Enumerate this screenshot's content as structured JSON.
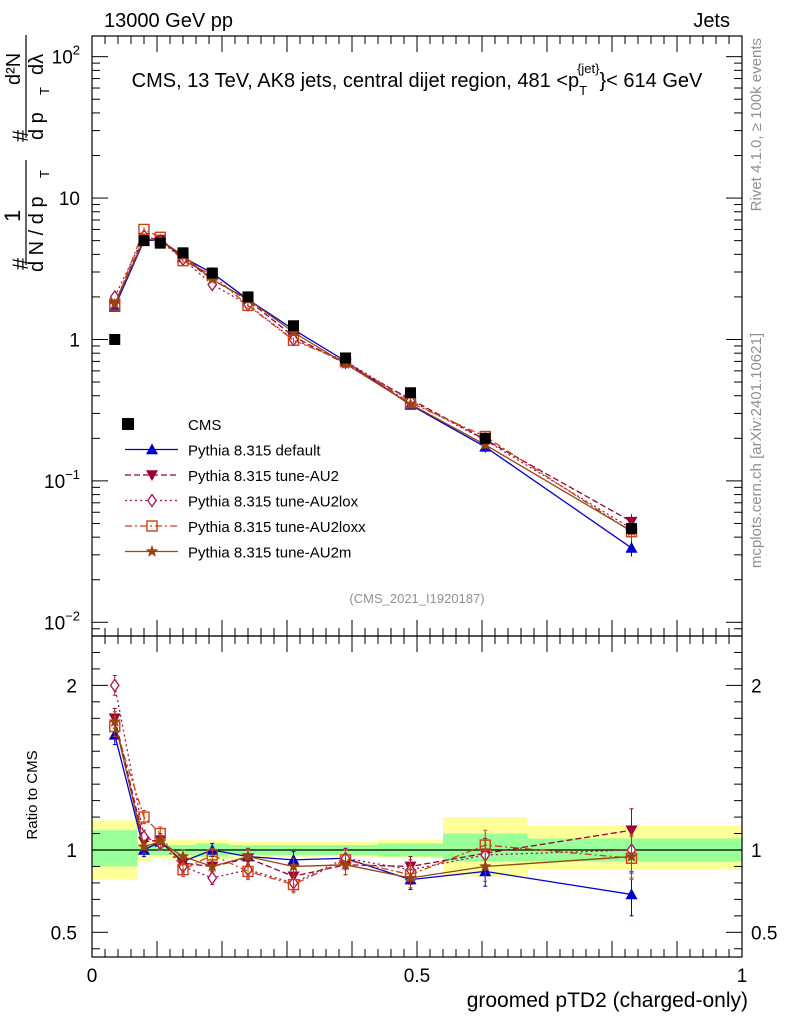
{
  "header": {
    "left": "13000 GeV pp",
    "right": "Jets"
  },
  "chart_data": {
    "type": "line",
    "title": "CMS, 13 TeV, AK8 jets, central dijet region, 481 < p_T^{jet} < 614 GeV",
    "title_parts": {
      "pre": "CMS, 13 TeV, AK8 jets, central dijet region, 481 <p",
      "sub": "T",
      "sup": "{jet}",
      "post": "}< 614 GeV"
    },
    "analysis_id": "(CMS_2021_I1920187)",
    "xlabel": "groomed pTD2 (charged-only)",
    "ylabel_parts": {
      "hash": "#",
      "one": "1",
      "dN": "d N / d p",
      "T": "T",
      "hash2": "#",
      "d2N": "d²N",
      "dpT": "d p",
      "T2": "T",
      "dlambda": "dλ"
    },
    "ratio_ylabel": "Ratio to CMS",
    "xlim": [
      0,
      1
    ],
    "ylim_top": [
      0.008,
      140
    ],
    "ylim_ratio": [
      0.35,
      2.3
    ],
    "x_ticks": [
      "0",
      "0.5",
      "1"
    ],
    "y_ticks_top": [
      {
        "base": "10",
        "exp": "2",
        "value": 100
      },
      {
        "base": "10",
        "exp": "",
        "value": 10
      },
      {
        "base": "1",
        "exp": "",
        "value": 1
      },
      {
        "base": "10",
        "exp": "−1",
        "value": 0.1
      },
      {
        "base": "10",
        "exp": "−2",
        "value": 0.01
      }
    ],
    "y_ticks_ratio": [
      "2",
      "1",
      "0.5"
    ],
    "x": [
      0.035,
      0.08,
      0.105,
      0.14,
      0.185,
      0.24,
      0.31,
      0.39,
      0.49,
      0.605,
      0.83
    ],
    "bin_edges": [
      0.0,
      0.07,
      0.09,
      0.12,
      0.16,
      0.21,
      0.27,
      0.35,
      0.44,
      0.54,
      0.67,
      1.0
    ],
    "cms_values": [
      1.0,
      5.0,
      4.8,
      4.1,
      2.95,
      2.0,
      1.25,
      0.74,
      0.42,
      0.2,
      0.046
    ],
    "band_inner": [
      [
        0.9,
        1.12
      ],
      [
        0.97,
        1.03
      ],
      [
        0.97,
        1.03
      ],
      [
        0.97,
        1.03
      ],
      [
        0.96,
        1.04
      ],
      [
        0.97,
        1.03
      ],
      [
        0.97,
        1.03
      ],
      [
        0.97,
        1.03
      ],
      [
        0.96,
        1.04
      ],
      [
        0.93,
        1.1
      ],
      [
        0.93,
        1.07
      ]
    ],
    "band_outer": [
      [
        0.82,
        1.18
      ],
      [
        0.93,
        1.05
      ],
      [
        0.95,
        1.05
      ],
      [
        0.94,
        1.06
      ],
      [
        0.94,
        1.06
      ],
      [
        0.95,
        1.05
      ],
      [
        0.96,
        1.05
      ],
      [
        0.96,
        1.05
      ],
      [
        0.95,
        1.06
      ],
      [
        0.84,
        1.2
      ],
      [
        0.88,
        1.15
      ]
    ],
    "series": [
      {
        "name": "Pythia 8.315 default",
        "color": "#0000cc",
        "dash": "",
        "marker": "triangle-up",
        "ratio": [
          1.7,
          1.0,
          1.05,
          0.93,
          1.0,
          0.96,
          0.94,
          0.95,
          0.82,
          0.87,
          0.73
        ],
        "err": [
          0.06,
          0.04,
          0.04,
          0.04,
          0.04,
          0.05,
          0.05,
          0.06,
          0.06,
          0.09,
          0.13
        ]
      },
      {
        "name": "Pythia 8.315 tune-AU2",
        "color": "#990033",
        "dash": "6,3",
        "marker": "triangle-down",
        "ratio": [
          1.8,
          1.05,
          1.06,
          0.92,
          0.9,
          0.95,
          0.84,
          0.91,
          0.9,
          0.98,
          1.12
        ],
        "err": [
          0.06,
          0.04,
          0.04,
          0.04,
          0.04,
          0.05,
          0.05,
          0.06,
          0.06,
          0.09,
          0.13
        ]
      },
      {
        "name": "Pythia 8.315 tune-AU2lox",
        "color": "#aa1155",
        "dash": "2,3",
        "marker": "diamond-open",
        "ratio": [
          2.0,
          1.08,
          1.04,
          0.9,
          0.83,
          0.88,
          0.8,
          0.95,
          0.88,
          0.97,
          1.0
        ],
        "err": [
          0.06,
          0.04,
          0.04,
          0.04,
          0.04,
          0.05,
          0.05,
          0.06,
          0.06,
          0.09,
          0.13
        ]
      },
      {
        "name": "Pythia 8.315 tune-AU2loxx",
        "color": "#cc4411",
        "dash": "7,3,2,3",
        "marker": "square-open",
        "ratio": [
          1.75,
          1.2,
          1.1,
          0.88,
          0.97,
          0.87,
          0.79,
          0.94,
          0.85,
          1.03,
          0.95
        ],
        "err": [
          0.06,
          0.04,
          0.04,
          0.04,
          0.04,
          0.05,
          0.05,
          0.06,
          0.06,
          0.09,
          0.13
        ]
      },
      {
        "name": "Pythia 8.315 tune-AU2m",
        "color": "#994411",
        "dash": "",
        "marker": "star",
        "ratio": [
          1.78,
          1.02,
          1.05,
          0.96,
          0.9,
          0.96,
          0.9,
          0.91,
          0.83,
          0.9,
          0.96
        ],
        "err": [
          0.06,
          0.04,
          0.04,
          0.04,
          0.04,
          0.05,
          0.05,
          0.06,
          0.06,
          0.09,
          0.13
        ]
      }
    ],
    "legend": {
      "location": "center-left",
      "cms_label": "CMS"
    },
    "colors": {
      "cms": "#000000",
      "band_inner": "#99ff99",
      "band_outer": "#ffff99",
      "reference_line": "#000000"
    }
  },
  "side": {
    "rivet": "Rivet 4.1.0, ≥ 100k events",
    "mcplots": "mcplots.cern.ch [arXiv:2401.10621]"
  }
}
